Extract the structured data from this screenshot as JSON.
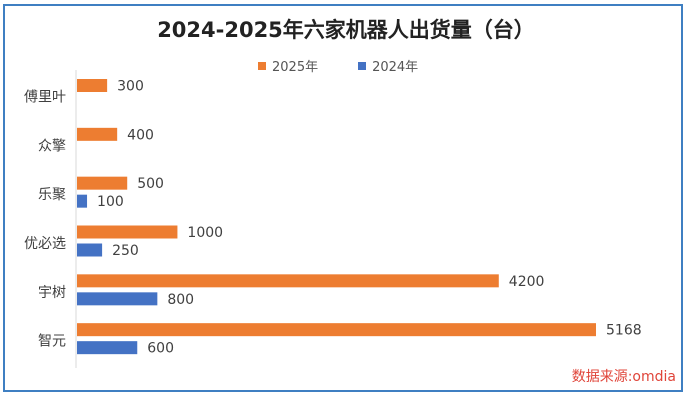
{
  "chart_data": {
    "type": "bar",
    "orientation": "horizontal",
    "title": "2024-2025年六家机器人出货量（台）",
    "categories": [
      "傅里叶",
      "众擎",
      "乐聚",
      "优必选",
      "宇树",
      "智元"
    ],
    "series": [
      {
        "name": "2025年",
        "color": "#ed7d31",
        "values": [
          300,
          400,
          500,
          1000,
          4200,
          5168
        ]
      },
      {
        "name": "2024年",
        "color": "#4472c4",
        "values": [
          null,
          null,
          100,
          250,
          800,
          600
        ]
      }
    ],
    "xlim": [
      0,
      6000
    ],
    "legend_position": "top",
    "grid": false,
    "data_labels": true
  },
  "source_note": "数据来源:omdia"
}
